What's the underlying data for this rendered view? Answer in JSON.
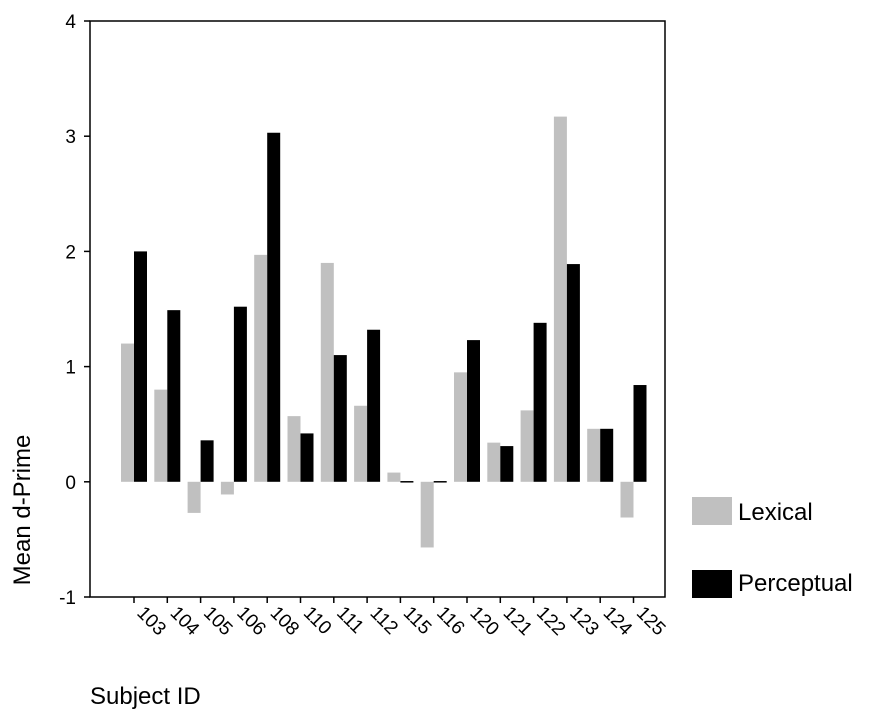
{
  "chart_data": {
    "type": "bar",
    "xlabel": "Subject ID",
    "ylabel": "Mean d-Prime",
    "ylim": [
      -1,
      4
    ],
    "yticks": [
      "-1",
      "0",
      "1",
      "2",
      "3",
      "4"
    ],
    "grid": false,
    "legend_position": "right",
    "categories": [
      "103",
      "104",
      "105",
      "106",
      "108",
      "110",
      "111",
      "112",
      "115",
      "116",
      "120",
      "121",
      "122",
      "123",
      "124",
      "125"
    ],
    "series": [
      {
        "name": "Lexical",
        "color": "#c0c0c0",
        "values": [
          1.2,
          0.8,
          -0.27,
          -0.11,
          1.97,
          0.57,
          1.9,
          0.66,
          0.08,
          -0.57,
          0.95,
          0.34,
          0.62,
          3.17,
          0.46,
          -0.31
        ]
      },
      {
        "name": "Perceptual",
        "color": "#000000",
        "values": [
          2.0,
          1.49,
          0.36,
          1.52,
          3.03,
          0.42,
          1.1,
          1.32,
          0.0,
          0.0,
          1.23,
          0.31,
          1.38,
          1.89,
          0.46,
          0.84
        ]
      }
    ]
  }
}
